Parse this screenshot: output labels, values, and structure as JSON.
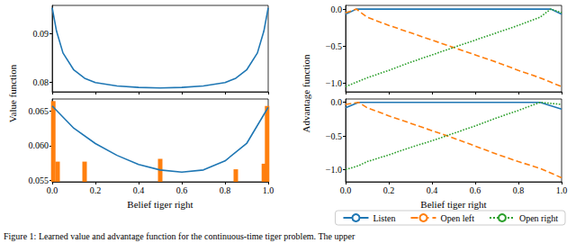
{
  "chart_data": [
    {
      "type": "line",
      "ylabel": "Value function",
      "x": [
        0,
        0.02,
        0.05,
        0.1,
        0.15,
        0.2,
        0.3,
        0.4,
        0.5,
        0.6,
        0.7,
        0.8,
        0.85,
        0.9,
        0.95,
        0.98,
        1.0
      ],
      "series": [
        {
          "color": "#1f77b4",
          "line_style": "solid",
          "values": [
            0.0953,
            0.0905,
            0.086,
            0.0825,
            0.0808,
            0.0799,
            0.0792,
            0.0789,
            0.0788,
            0.0789,
            0.0792,
            0.0799,
            0.0808,
            0.0825,
            0.086,
            0.0905,
            0.0953
          ]
        }
      ],
      "xlim": [
        0,
        1
      ],
      "xticks": [
        {
          "value": 0,
          "label": "0.0"
        },
        0.2,
        0.4,
        0.6,
        0.8,
        {
          "value": 1,
          "label": "1.0"
        }
      ],
      "ylim": [
        0.078,
        0.0958
      ],
      "yticks": [
        0.08,
        0.09
      ],
      "tick_labels": "y",
      "grid": false
    },
    {
      "type": "line",
      "xlabel": "Belief tiger right",
      "x": [
        0,
        0.1,
        0.2,
        0.3,
        0.4,
        0.5,
        0.6,
        0.7,
        0.8,
        0.9,
        1.0
      ],
      "series": [
        {
          "type": "line",
          "color": "#1f77b4",
          "line_style": "solid",
          "values": [
            0.0657,
            0.0625,
            0.0603,
            0.0586,
            0.0573,
            0.0565,
            0.0562,
            0.0565,
            0.0578,
            0.0603,
            0.0655
          ]
        },
        {
          "type": "bar",
          "color": "#ff7f0e",
          "x": [
            0.005,
            0.025,
            0.15,
            0.5,
            0.85,
            0.98,
            0.995
          ],
          "values": [
            0.0664,
            0.0577,
            0.0577,
            0.0581,
            0.0566,
            0.0574,
            0.0657
          ]
        }
      ],
      "xlim": [
        0,
        1
      ],
      "xticks": [
        {
          "value": 0,
          "label": "0.0"
        },
        0.2,
        0.4,
        0.6,
        0.8,
        {
          "value": 1,
          "label": "1.0"
        }
      ],
      "ylim": [
        0.0548,
        0.0667
      ],
      "yticks": [
        0.055,
        {
          "value": 0.06,
          "label": "0.060"
        },
        0.065
      ],
      "grid": false
    },
    {
      "type": "line",
      "ylabel": "Advantage function",
      "x": [
        0,
        0.05,
        0.1,
        0.2,
        0.3,
        0.4,
        0.5,
        0.6,
        0.7,
        0.8,
        0.9,
        0.95,
        1.0
      ],
      "series": [
        {
          "name": "Listen",
          "color": "#1f77b4",
          "line_style": "solid",
          "values": [
            -0.07,
            0,
            0,
            0,
            0,
            0,
            0,
            0,
            0,
            0,
            0,
            0,
            -0.07
          ]
        },
        {
          "name": "Open left",
          "color": "#ff7f0e",
          "line_style": "dashed",
          "values": [
            -0.05,
            0,
            -0.11,
            -0.22,
            -0.32,
            -0.42,
            -0.52,
            -0.62,
            -0.72,
            -0.83,
            -0.93,
            -0.99,
            -1.05
          ]
        },
        {
          "name": "Open right",
          "color": "#2ca02c",
          "line_style": "dotted",
          "values": [
            -1.05,
            -0.99,
            -0.93,
            -0.83,
            -0.72,
            -0.62,
            -0.52,
            -0.42,
            -0.32,
            -0.22,
            -0.11,
            0,
            -0.05
          ]
        }
      ],
      "xlim": [
        0,
        1
      ],
      "xticks": [
        {
          "value": 0,
          "label": "0.0"
        },
        0.2,
        0.4,
        0.6,
        0.8,
        {
          "value": 1,
          "label": "1.0"
        }
      ],
      "ylim": [
        -1.12,
        0.05
      ],
      "yticks": [
        {
          "value": -1,
          "label": "−1.0"
        },
        {
          "value": -0.5,
          "label": "−0.5"
        },
        {
          "value": 0,
          "label": "0.0"
        }
      ],
      "tick_labels": "y",
      "grid": false
    },
    {
      "type": "line",
      "xlabel": "Belief tiger right",
      "x": [
        0,
        0.06,
        0.1,
        0.2,
        0.3,
        0.4,
        0.5,
        0.6,
        0.7,
        0.8,
        0.9,
        1.0
      ],
      "series": [
        {
          "name": "Listen",
          "color": "#1f77b4",
          "line_style": "solid",
          "values": [
            -0.08,
            0,
            0,
            0,
            0,
            0,
            0,
            0,
            0,
            0,
            0,
            -0.1
          ]
        },
        {
          "name": "Open left",
          "color": "#ff7f0e",
          "line_style": "dashed",
          "values": [
            -0.03,
            0,
            -0.08,
            -0.2,
            -0.31,
            -0.42,
            -0.53,
            -0.65,
            -0.77,
            -0.88,
            -0.98,
            -1.12
          ]
        },
        {
          "name": "Open right",
          "color": "#2ca02c",
          "line_style": "dotted",
          "values": [
            -1.0,
            -0.94,
            -0.88,
            -0.78,
            -0.67,
            -0.57,
            -0.46,
            -0.35,
            -0.23,
            -0.12,
            0,
            -0.03
          ]
        }
      ],
      "xlim": [
        0,
        1
      ],
      "xticks": [
        {
          "value": 0,
          "label": "0.0"
        },
        0.2,
        0.4,
        0.6,
        0.8,
        {
          "value": 1,
          "label": "1.0"
        }
      ],
      "ylim": [
        -1.18,
        0.05
      ],
      "yticks": [
        {
          "value": -1,
          "label": "−1.0"
        },
        {
          "value": -0.5,
          "label": "−0.5"
        },
        {
          "value": 0,
          "label": "0.0"
        }
      ],
      "legend": "bottom",
      "grid": false
    }
  ],
  "caption": "Figure 1: Learned value and advantage function for the continuous-time tiger problem. The upper"
}
